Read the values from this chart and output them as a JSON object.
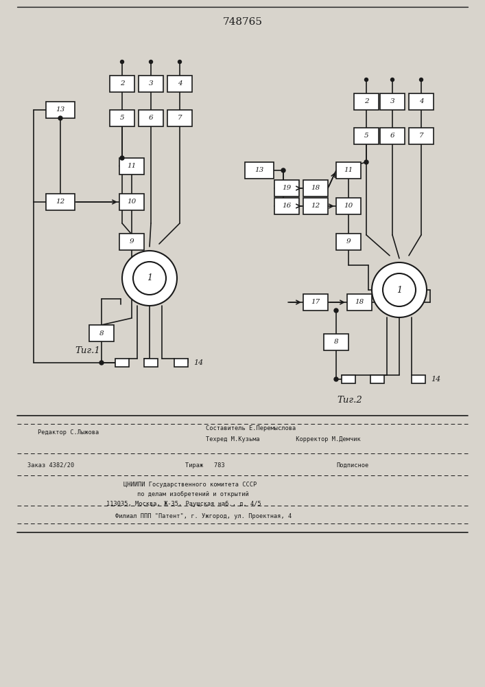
{
  "title": "748765",
  "fig1_label": "Τиг.1",
  "fig2_label": "Τиг.2",
  "bg_color": "#d8d4cc",
  "line_color": "#1a1a1a",
  "box_color": "#ffffff",
  "footer_editor": "Редактор С.Лыжова",
  "footer_author": "Составитель Е.Перемыслова",
  "footer_tech": "Техред М.Кузьма",
  "footer_corr": "Корректор М.Демчик",
  "footer_order": "Заказ 4382/20",
  "footer_tirazh": "Тираж   783",
  "footer_podp": "Подписное",
  "footer_org1": "ЦНИИПИ Государственного комитета СССР",
  "footer_org2": "по делам изобретений и открытий",
  "footer_addr": "113035, Москва, Ж-35, Раушская наб., д. 4/5",
  "footer_filial": "Филиал ППП \"Патент\", г. Ужгород, ул. Проектная, 4"
}
